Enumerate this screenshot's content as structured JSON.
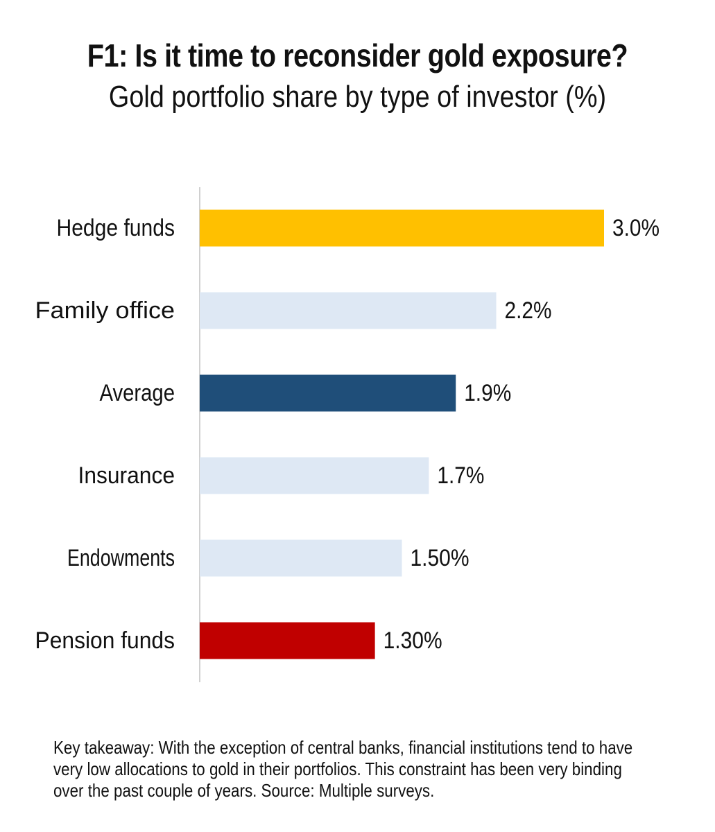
{
  "chart_data": {
    "type": "bar",
    "orientation": "horizontal",
    "title": "F1: Is it time to reconsider gold exposure?",
    "subtitle": "Gold portfolio share by type of investor (%)",
    "categories": [
      "Hedge funds",
      "Family office",
      "Average",
      "Insurance",
      "Endowments",
      "Pension funds"
    ],
    "values": [
      3.0,
      2.2,
      1.9,
      1.7,
      1.5,
      1.3
    ],
    "data_labels": [
      "3.0%",
      "2.2%",
      "1.9%",
      "1.7%",
      "1.50%",
      "1.30%"
    ],
    "bar_colors": [
      "#FFC000",
      "#DEE8F4",
      "#1F4E79",
      "#DEE8F4",
      "#DEE8F4",
      "#C00000"
    ],
    "xlabel": "",
    "ylabel": "",
    "xlim": [
      0,
      3.0
    ],
    "grid": false,
    "legend": "none"
  },
  "footnote": "Key takeaway: With the exception of central banks, financial institutions tend to have very low allocations to gold in their portfolios. This constraint has been very binding over the past couple of years. Source: Multiple surveys."
}
